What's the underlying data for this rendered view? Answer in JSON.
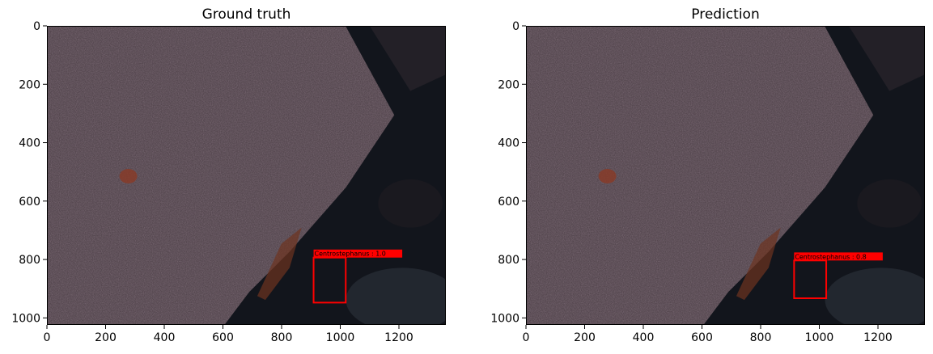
{
  "image_width": 1360,
  "image_height": 1024,
  "x_ticks": [
    "0",
    "200",
    "400",
    "600",
    "800",
    "1000",
    "1200"
  ],
  "y_ticks": [
    "0",
    "200",
    "400",
    "600",
    "800",
    "1000"
  ],
  "panels": [
    {
      "title": "Ground truth",
      "box": {
        "label": "Centrostephanus : 1.0",
        "x0": 910,
        "y0": 795,
        "x1": 1020,
        "y1": 950,
        "color": "#ff0000"
      }
    },
    {
      "title": "Prediction",
      "box": {
        "label": "Centrostephanus : 0.8",
        "x0": 915,
        "y0": 805,
        "x1": 1025,
        "y1": 935,
        "color": "#ff0000"
      }
    }
  ],
  "colors": {
    "rock": "#4a3d44",
    "shadow": "#12151c",
    "accent": "#8a3a25"
  }
}
